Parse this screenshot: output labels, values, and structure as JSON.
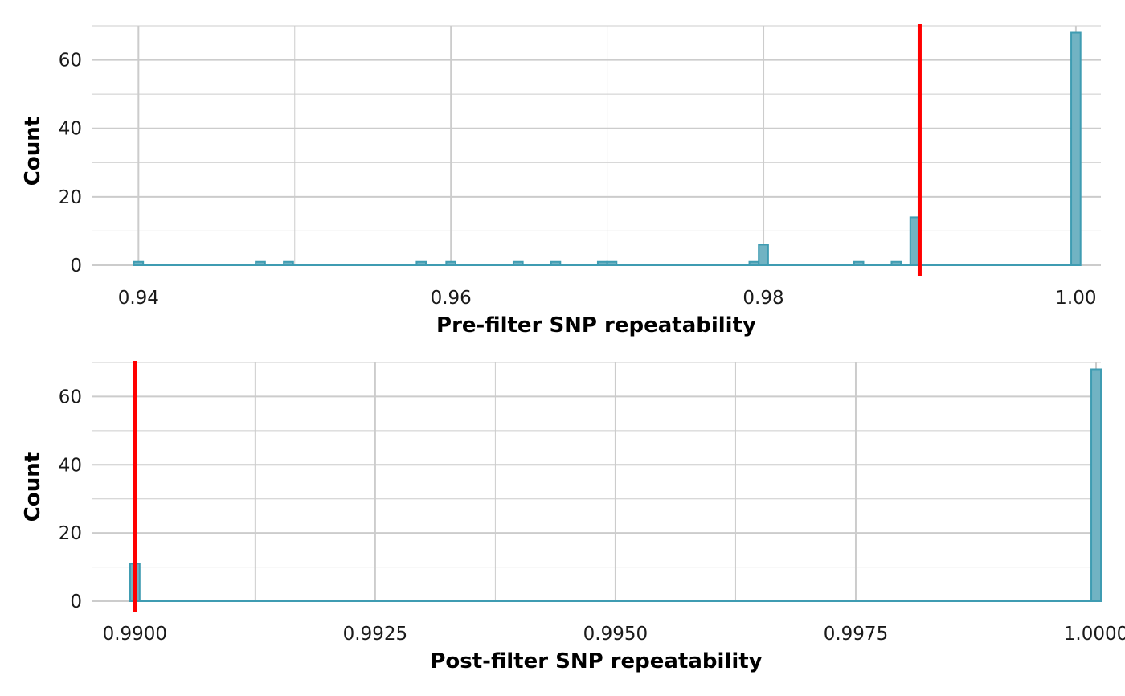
{
  "chart_data": [
    {
      "type": "histogram",
      "xlabel": "Pre-filter SNP repeatability",
      "ylabel": "Count",
      "xlim": [
        0.937,
        1.0016
      ],
      "ylim": [
        0,
        70
      ],
      "x_ticks": [
        0.94,
        0.96,
        0.98,
        1.0
      ],
      "x_tick_labels": [
        "0.94",
        "0.96",
        "0.98",
        "1.00"
      ],
      "x_minor_ticks": [
        0.95,
        0.97,
        0.99
      ],
      "y_ticks": [
        0,
        20,
        40,
        60
      ],
      "y_tick_labels": [
        "0",
        "20",
        "40",
        "60"
      ],
      "y_minor_ticks": [
        10,
        30,
        50,
        70
      ],
      "grid": true,
      "bin_width": 0.0006,
      "bins": [
        {
          "x": 0.94,
          "count": 1
        },
        {
          "x": 0.9478,
          "count": 1
        },
        {
          "x": 0.9496,
          "count": 1
        },
        {
          "x": 0.9581,
          "count": 1
        },
        {
          "x": 0.96,
          "count": 1
        },
        {
          "x": 0.9643,
          "count": 1
        },
        {
          "x": 0.9667,
          "count": 1
        },
        {
          "x": 0.9697,
          "count": 1
        },
        {
          "x": 0.9703,
          "count": 1
        },
        {
          "x": 0.9794,
          "count": 1
        },
        {
          "x": 0.98,
          "count": 6
        },
        {
          "x": 0.9861,
          "count": 1
        },
        {
          "x": 0.9885,
          "count": 1
        },
        {
          "x": 0.9897,
          "count": 14
        },
        {
          "x": 1.0,
          "count": 68
        }
      ],
      "threshold": 0.99,
      "bar_fill": "#71b3c3",
      "bar_stroke": "#3f9cb2",
      "threshold_color": "#ff0000",
      "grid_color": "#cccccc"
    },
    {
      "type": "histogram",
      "xlabel": "Post-filter SNP repeatability",
      "ylabel": "Count",
      "xlim": [
        0.98955,
        1.00005
      ],
      "ylim": [
        0,
        70
      ],
      "x_ticks": [
        0.99,
        0.9925,
        0.995,
        0.9975,
        1.0
      ],
      "x_tick_labels": [
        "0.9900",
        "0.9925",
        "0.9950",
        "0.9975",
        "1.0000"
      ],
      "x_minor_ticks": [
        0.99125,
        0.99375,
        0.99625,
        0.99875
      ],
      "y_ticks": [
        0,
        20,
        40,
        60
      ],
      "y_tick_labels": [
        "0",
        "20",
        "40",
        "60"
      ],
      "y_minor_ticks": [
        10,
        30,
        50,
        70
      ],
      "grid": true,
      "bin_width": 0.0001,
      "bins": [
        {
          "x": 0.99,
          "count": 11
        },
        {
          "x": 1.0,
          "count": 68
        }
      ],
      "threshold": 0.99,
      "bar_fill": "#71b3c3",
      "bar_stroke": "#3f9cb2",
      "threshold_color": "#ff0000",
      "grid_color": "#cccccc"
    }
  ]
}
